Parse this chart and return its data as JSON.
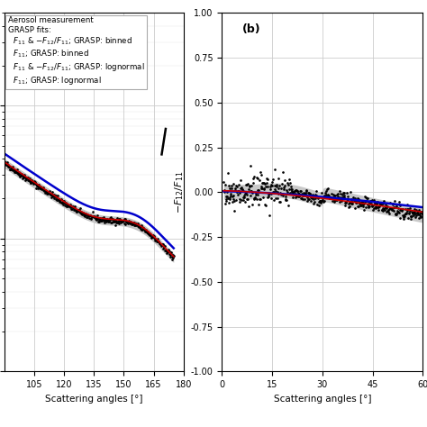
{
  "bg_color": "#ffffff",
  "grid_color": "#cccccc",
  "panel_a_xlim": [
    90,
    180
  ],
  "panel_a_xticks": [
    105,
    120,
    135,
    150,
    165,
    180
  ],
  "panel_a_ylim_log_min": 0.01,
  "panel_a_ylim_log_max": 5.0,
  "panel_b_xlim": [
    0,
    60
  ],
  "panel_b_ylim": [
    -1.0,
    1.0
  ],
  "panel_b_xticks": [
    0,
    15,
    30,
    45,
    60
  ],
  "panel_b_yticks": [
    -1.0,
    -0.75,
    -0.5,
    -0.25,
    0.0,
    0.25,
    0.5,
    0.75,
    1.0
  ],
  "color_measurement": "#000000",
  "color_uncertainty": "#888888",
  "color_blue": "#0000cc",
  "color_red": "#cc0000",
  "panel_b_label": "(b)",
  "legend_line0": "Aerosol measurement",
  "legend_line1": "GRASP fits:",
  "legend_line2": "$F_{11}$ & $-F_{12}/F_{11}$; GRASP: binned",
  "legend_line3": "$F_{11}$; GRASP: binned",
  "legend_line4": "$F_{11}$ & $-F_{12}/F_{11}$; GRASP: lognormal",
  "legend_line5": "$F_{11}$; GRASP: lognormal"
}
